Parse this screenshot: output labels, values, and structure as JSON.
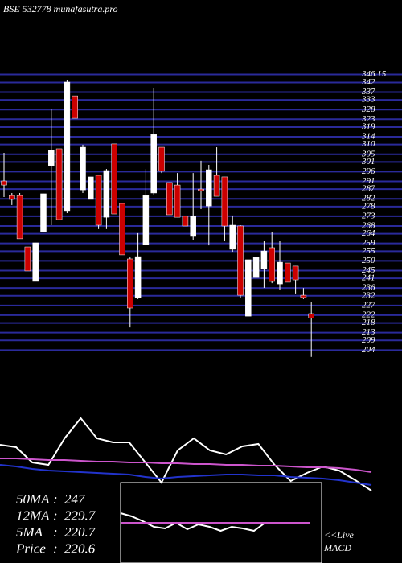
{
  "chart_data": [
    {
      "type": "candlestick",
      "title": "BSE 532778 munafasutra.pro",
      "open": [
        291.2,
        283.7,
        283.7,
        257.2,
        239.4,
        265.1,
        299.1,
        307.8,
        275.9,
        335.1,
        286.6,
        281.7,
        294.1,
        272.5,
        310.3,
        279.6,
        251.0,
        231.1,
        258.4,
        285.0,
        308.6,
        290.4,
        289.1,
        273.0,
        262.6,
        287.0,
        278.3,
        294.1,
        293.3,
        256.0,
        268.0,
        221.5,
        241.4,
        246.0,
        256.8,
        238.1,
        248.9,
        247.3,
        232.3,
        222.8
      ],
      "high": [
        305.7,
        285.0,
        285.0,
        257.2,
        259.3,
        284.6,
        328.5,
        307.8,
        343.0,
        335.1,
        309.9,
        293.3,
        294.1,
        297.4,
        310.3,
        279.6,
        251.8,
        264.3,
        297.4,
        338.9,
        308.6,
        290.4,
        295.3,
        273.0,
        295.3,
        301.6,
        299.5,
        308.6,
        293.3,
        273.4,
        268.4,
        250.6,
        251.8,
        260.1,
        265.1,
        260.1,
        248.9,
        247.3,
        236.0,
        229.0
      ],
      "low": [
        282.9,
        278.8,
        261.4,
        244.8,
        239.4,
        265.1,
        268.4,
        271.3,
        274.6,
        323.5,
        285.0,
        281.7,
        266.4,
        266.4,
        274.2,
        253.1,
        215.7,
        230.3,
        258.0,
        284.2,
        295.3,
        273.8,
        272.5,
        268.0,
        260.9,
        276.7,
        258.0,
        283.3,
        260.1,
        254.7,
        231.1,
        221.5,
        241.4,
        236.1,
        238.5,
        235.2,
        239.0,
        233.2,
        230.3,
        200.5
      ],
      "close": [
        289.1,
        281.7,
        261.4,
        244.8,
        259.3,
        284.6,
        307.0,
        271.3,
        342.2,
        323.5,
        308.6,
        293.3,
        268.4,
        296.6,
        274.2,
        253.1,
        225.7,
        252.2,
        283.7,
        315.2,
        296.2,
        273.8,
        272.5,
        268.0,
        273.0,
        286.2,
        297.0,
        283.3,
        268.0,
        268.4,
        232.3,
        250.6,
        251.8,
        255.1,
        239.4,
        249.3,
        239.0,
        240.2,
        231.1,
        220.6
      ],
      "up_color": "#ffffff",
      "down_color": "#cc0000",
      "grid_color": "#2a2a9a",
      "ylim": [
        200,
        348
      ],
      "yticks": [
        346.15,
        342,
        337,
        333,
        328,
        323,
        319,
        314,
        310,
        305,
        301,
        296,
        291,
        287,
        282,
        278,
        273,
        268,
        264,
        259,
        255,
        250,
        245,
        241,
        236,
        232,
        227,
        222,
        218,
        213,
        209,
        204
      ],
      "grid": true
    },
    {
      "type": "line",
      "ylim": [
        0,
        115
      ],
      "series": [
        {
          "color": "#ffffff",
          "values": [
            62,
            59,
            40,
            37,
            70,
            95,
            70,
            65,
            65,
            40,
            15,
            55,
            70,
            55,
            50,
            60,
            63,
            37,
            17,
            27,
            35,
            30,
            18,
            5
          ]
        },
        {
          "color": "#cc55cc",
          "values": [
            45,
            45,
            44,
            43,
            43,
            42,
            41,
            41,
            40,
            40,
            39,
            39,
            38,
            38,
            37,
            37,
            36,
            36,
            35,
            34,
            34,
            33,
            31,
            28
          ]
        },
        {
          "color": "#2233cc",
          "values": [
            37,
            35,
            32,
            30,
            29,
            28,
            27,
            26,
            25,
            22,
            20,
            22,
            23,
            24,
            25,
            25,
            24,
            24,
            22,
            21,
            20,
            18,
            15,
            12
          ]
        }
      ]
    },
    {
      "type": "line",
      "ylim": [
        0,
        100
      ],
      "caption": [
        "<<Live",
        "MACD"
      ],
      "series": [
        {
          "color": "#ffffff",
          "values": [
            62,
            58,
            52,
            45,
            43,
            50,
            42,
            48,
            45,
            40,
            45,
            43,
            40,
            50,
            50,
            50,
            50,
            50
          ]
        },
        {
          "color": "#cc55cc",
          "values": [
            50,
            50
          ]
        }
      ]
    }
  ],
  "stats": [
    {
      "label": "50MA",
      "value": 247
    },
    {
      "label": "12MA",
      "value": 229.7
    },
    {
      "label": "5MA",
      "value": 220.7
    },
    {
      "label": "Price",
      "value": 220.6
    }
  ],
  "separator": ":"
}
